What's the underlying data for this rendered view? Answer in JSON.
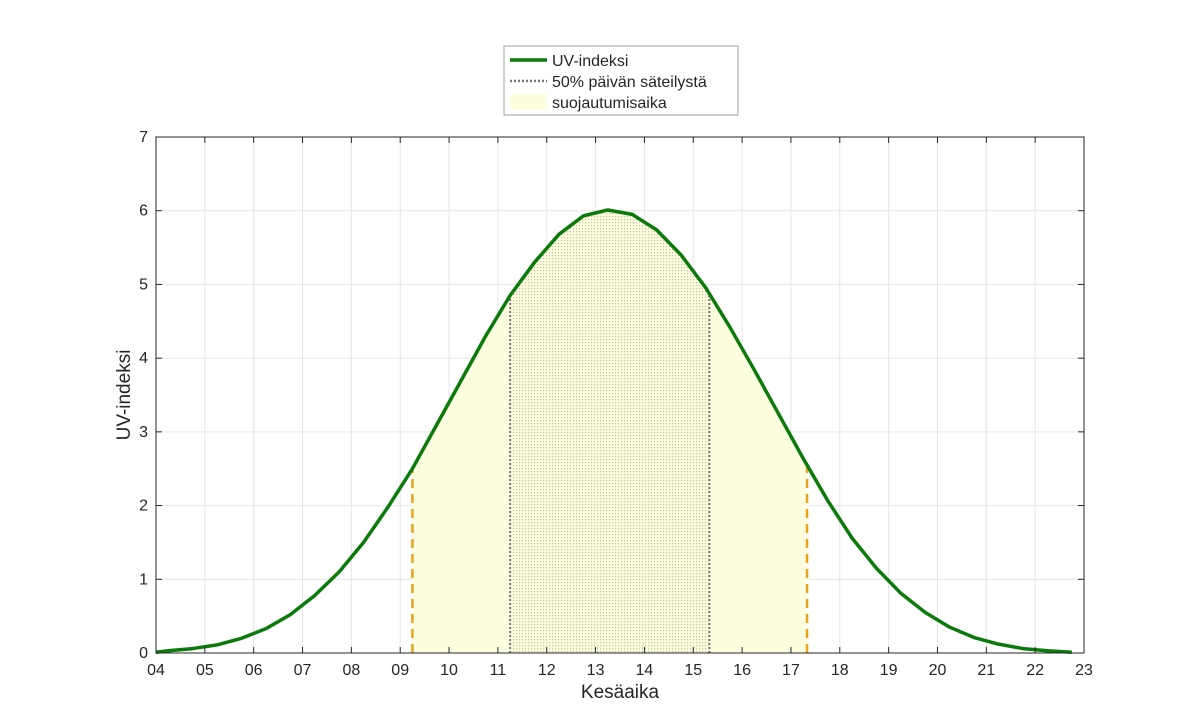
{
  "chart_data": {
    "type": "line",
    "xlabel": "Kesäaika",
    "ylabel": "UV-indeksi",
    "xlim": [
      4,
      23
    ],
    "ylim": [
      0,
      7
    ],
    "x_ticks": [
      4,
      5,
      6,
      7,
      8,
      9,
      10,
      11,
      12,
      13,
      14,
      15,
      16,
      17,
      18,
      19,
      20,
      21,
      22,
      23
    ],
    "x_tick_labels": [
      "04",
      "05",
      "06",
      "07",
      "08",
      "09",
      "10",
      "11",
      "12",
      "13",
      "14",
      "15",
      "16",
      "17",
      "18",
      "19",
      "20",
      "21",
      "22",
      "23"
    ],
    "y_ticks": [
      0,
      1,
      2,
      3,
      4,
      5,
      6,
      7
    ],
    "y_tick_labels": [
      "0",
      "1",
      "2",
      "3",
      "4",
      "5",
      "6",
      "7"
    ],
    "grid": true,
    "legend_position": "top-center",
    "series": [
      {
        "name": "UV-indeksi",
        "color": "#0a7a0a",
        "x": [
          4,
          4.25,
          4.75,
          5.25,
          5.75,
          6.25,
          6.75,
          7.25,
          7.75,
          8.25,
          8.75,
          9.25,
          9.75,
          10.25,
          10.75,
          11.25,
          11.75,
          12.25,
          12.75,
          13.25,
          13.75,
          14.25,
          14.75,
          15.25,
          15.75,
          16.25,
          16.75,
          17.25,
          17.75,
          18.25,
          18.75,
          19.25,
          19.75,
          20.25,
          20.75,
          21.25,
          21.75,
          22.25,
          22.75
        ],
        "y": [
          0.01,
          0.03,
          0.06,
          0.11,
          0.2,
          0.33,
          0.52,
          0.78,
          1.1,
          1.5,
          1.98,
          2.5,
          3.1,
          3.7,
          4.3,
          4.85,
          5.3,
          5.68,
          5.93,
          6.01,
          5.95,
          5.74,
          5.4,
          4.96,
          4.42,
          3.84,
          3.24,
          2.64,
          2.07,
          1.56,
          1.15,
          0.81,
          0.55,
          0.35,
          0.21,
          0.12,
          0.06,
          0.03,
          0.01
        ]
      }
    ],
    "legend": [
      {
        "label": "UV-indeksi",
        "style": "solid",
        "color": "#0a7a0a"
      },
      {
        "label": "50% päivän säteilystä",
        "style": "dotted",
        "color": "#777777"
      },
      {
        "label": "suojautumisaika",
        "style": "fill",
        "color": "#fdfde0"
      }
    ],
    "protection_time": {
      "start": 9.25,
      "end": 17.33,
      "color": "#fdfde0",
      "edge_color": "#e8a317"
    },
    "half_radiation": {
      "start": 11.25,
      "end": 15.33,
      "color": "#777777"
    }
  }
}
